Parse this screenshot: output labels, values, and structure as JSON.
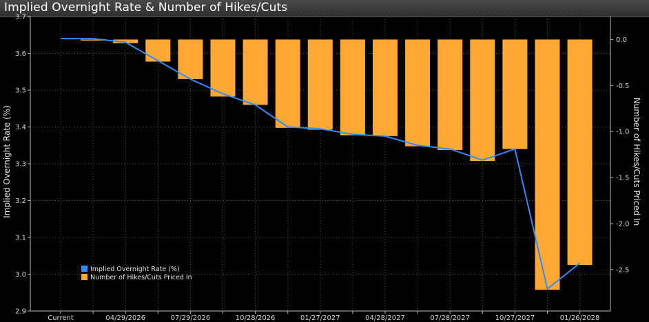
{
  "window": {
    "title": "Implied Overnight Rate & Number of Hikes/Cuts"
  },
  "colors": {
    "background": "#000000",
    "bar": "#FFA833",
    "line": "#2F8CFF",
    "grid": "#555555"
  },
  "chart_data": {
    "type": "bar",
    "title": "Implied Overnight Rate & Number of Hikes/Cuts",
    "categories": [
      "Current",
      "",
      "04/29/2026",
      "",
      "07/29/2026",
      "",
      "10/28/2026",
      "",
      "01/27/2027",
      "",
      "04/28/2027",
      "",
      "07/28/2027",
      "",
      "10/27/2027",
      "",
      "01/26/2028"
    ],
    "series": [
      {
        "name": "Implied Overnight Rate (%)",
        "chart_type": "line",
        "axis": "left",
        "values": [
          3.64,
          3.64,
          3.63,
          3.58,
          3.53,
          3.49,
          3.46,
          3.4,
          3.395,
          3.38,
          3.375,
          3.35,
          3.34,
          3.31,
          3.34,
          2.96,
          3.03
        ]
      },
      {
        "name": "Number of Hikes/Cuts Priced In",
        "chart_type": "bar",
        "axis": "right",
        "values": [
          null,
          0.0,
          -0.04,
          -0.24,
          -0.43,
          -0.62,
          -0.71,
          -0.96,
          -0.98,
          -1.04,
          -1.05,
          -1.16,
          -1.2,
          -1.32,
          -1.19,
          -2.72,
          -2.45
        ]
      }
    ],
    "y_left": {
      "label": "Implied Overnight Rate (%)",
      "ylim": [
        2.9,
        3.7
      ],
      "ticks": [
        "2.9",
        "3.0",
        "3.1",
        "3.2",
        "3.3",
        "3.4",
        "3.5",
        "3.6",
        "3.7"
      ]
    },
    "y_right": {
      "label": "Number of Hikes/Cuts Priced In",
      "ylim": [
        -2.95,
        0.25
      ],
      "ticks": [
        "0.0",
        "-0.5",
        "-1.0",
        "-1.5",
        "-2.0",
        "-2.5"
      ]
    },
    "grid": true,
    "legend": {
      "position": "bottom-left",
      "entries": [
        "Implied Overnight Rate (%)",
        "Number of Hikes/Cuts Priced In"
      ]
    }
  }
}
